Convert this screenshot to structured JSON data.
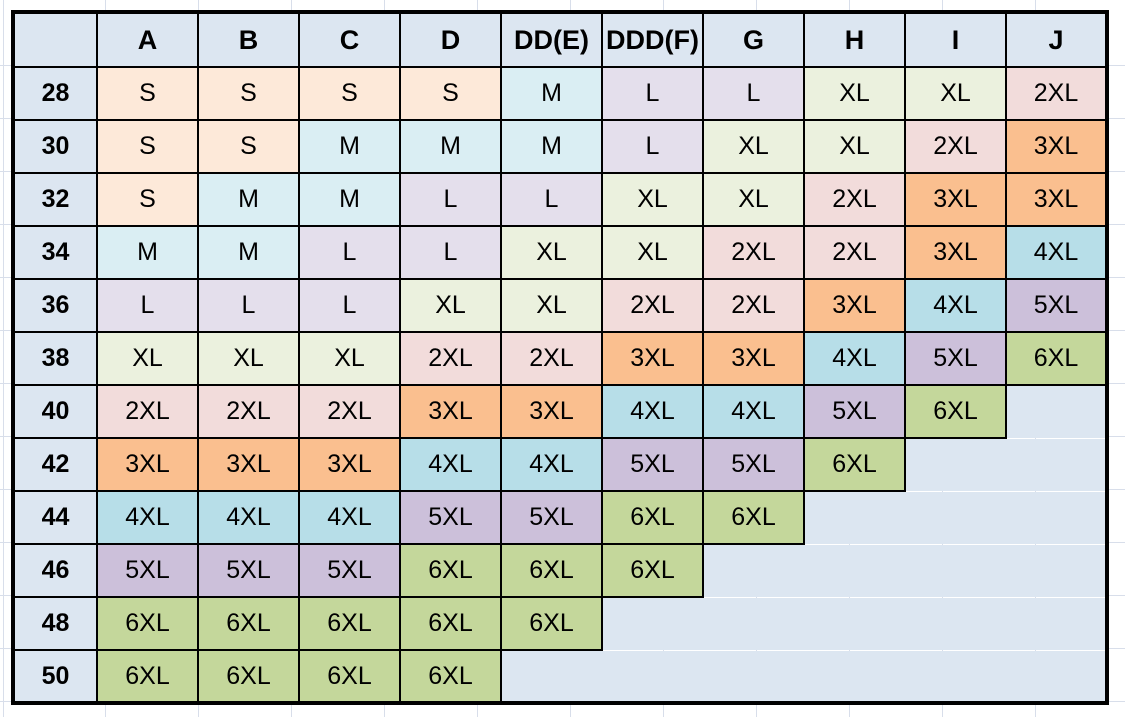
{
  "table": {
    "corner_label": "",
    "columns": [
      "A",
      "B",
      "C",
      "D",
      "DD(E)",
      "DDD(F)",
      "G",
      "H",
      "I",
      "J"
    ],
    "rows": [
      {
        "band": "28",
        "sizes": [
          "S",
          "S",
          "S",
          "S",
          "M",
          "L",
          "L",
          "XL",
          "XL",
          "2XL"
        ]
      },
      {
        "band": "30",
        "sizes": [
          "S",
          "S",
          "M",
          "M",
          "M",
          "L",
          "XL",
          "XL",
          "2XL",
          "3XL"
        ]
      },
      {
        "band": "32",
        "sizes": [
          "S",
          "M",
          "M",
          "L",
          "L",
          "XL",
          "XL",
          "2XL",
          "3XL",
          "3XL"
        ]
      },
      {
        "band": "34",
        "sizes": [
          "M",
          "M",
          "L",
          "L",
          "XL",
          "XL",
          "2XL",
          "2XL",
          "3XL",
          "4XL"
        ]
      },
      {
        "band": "36",
        "sizes": [
          "L",
          "L",
          "L",
          "XL",
          "XL",
          "2XL",
          "2XL",
          "3XL",
          "4XL",
          "5XL"
        ]
      },
      {
        "band": "38",
        "sizes": [
          "XL",
          "XL",
          "XL",
          "2XL",
          "2XL",
          "3XL",
          "3XL",
          "4XL",
          "5XL",
          "6XL"
        ]
      },
      {
        "band": "40",
        "sizes": [
          "2XL",
          "2XL",
          "2XL",
          "3XL",
          "3XL",
          "4XL",
          "4XL",
          "5XL",
          "6XL"
        ]
      },
      {
        "band": "42",
        "sizes": [
          "3XL",
          "3XL",
          "3XL",
          "4XL",
          "4XL",
          "5XL",
          "5XL",
          "6XL"
        ]
      },
      {
        "band": "44",
        "sizes": [
          "4XL",
          "4XL",
          "4XL",
          "5XL",
          "5XL",
          "6XL",
          "6XL"
        ]
      },
      {
        "band": "46",
        "sizes": [
          "5XL",
          "5XL",
          "5XL",
          "6XL",
          "6XL",
          "6XL"
        ]
      },
      {
        "band": "48",
        "sizes": [
          "6XL",
          "6XL",
          "6XL",
          "6XL",
          "6XL"
        ]
      },
      {
        "band": "50",
        "sizes": [
          "6XL",
          "6XL",
          "6XL",
          "6XL"
        ]
      }
    ]
  },
  "size_colors": {
    "S": "#FDE9D9",
    "M": "#DAEEF3",
    "L": "#E4DFEC",
    "XL": "#EBF1DE",
    "2XL": "#F2DCDB",
    "3XL": "#FABF8F",
    "4XL": "#B7DEE8",
    "5XL": "#CCC0DA",
    "6XL": "#C4D79B"
  },
  "colors": {
    "header_fill": "#DCE6F1",
    "row_header_fill": "#DCE6F1",
    "empty_fill": "#DCE6F1",
    "border": "#000000",
    "text": "#000000",
    "page_background": "#FFFFFF",
    "gridline": "#D8DEEA"
  },
  "layout": {
    "band_col_width": 84,
    "size_col_width": 101,
    "header_row_height": 55,
    "data_row_height": 53
  },
  "chart_data": {
    "type": "table",
    "title": "",
    "columns": [
      "A",
      "B",
      "C",
      "D",
      "DD(E)",
      "DDD(F)",
      "G",
      "H",
      "I",
      "J"
    ],
    "row_labels": [
      "28",
      "30",
      "32",
      "34",
      "36",
      "38",
      "40",
      "42",
      "44",
      "46",
      "48",
      "50"
    ],
    "rows": [
      [
        "S",
        "S",
        "S",
        "S",
        "M",
        "L",
        "L",
        "XL",
        "XL",
        "2XL"
      ],
      [
        "S",
        "S",
        "M",
        "M",
        "M",
        "L",
        "XL",
        "XL",
        "2XL",
        "3XL"
      ],
      [
        "S",
        "M",
        "M",
        "L",
        "L",
        "XL",
        "XL",
        "2XL",
        "3XL",
        "3XL"
      ],
      [
        "M",
        "M",
        "L",
        "L",
        "XL",
        "XL",
        "2XL",
        "2XL",
        "3XL",
        "4XL"
      ],
      [
        "L",
        "L",
        "L",
        "XL",
        "XL",
        "2XL",
        "2XL",
        "3XL",
        "4XL",
        "5XL"
      ],
      [
        "XL",
        "XL",
        "XL",
        "2XL",
        "2XL",
        "3XL",
        "3XL",
        "4XL",
        "5XL",
        "6XL"
      ],
      [
        "2XL",
        "2XL",
        "2XL",
        "3XL",
        "3XL",
        "4XL",
        "4XL",
        "5XL",
        "6XL",
        ""
      ],
      [
        "3XL",
        "3XL",
        "3XL",
        "4XL",
        "4XL",
        "5XL",
        "5XL",
        "6XL",
        "",
        ""
      ],
      [
        "4XL",
        "4XL",
        "4XL",
        "5XL",
        "5XL",
        "6XL",
        "6XL",
        "",
        "",
        ""
      ],
      [
        "5XL",
        "5XL",
        "5XL",
        "6XL",
        "6XL",
        "6XL",
        "",
        "",
        "",
        ""
      ],
      [
        "6XL",
        "6XL",
        "6XL",
        "6XL",
        "6XL",
        "",
        "",
        "",
        "",
        ""
      ],
      [
        "6XL",
        "6XL",
        "6XL",
        "6XL",
        "",
        "",
        "",
        "",
        "",
        ""
      ]
    ]
  }
}
